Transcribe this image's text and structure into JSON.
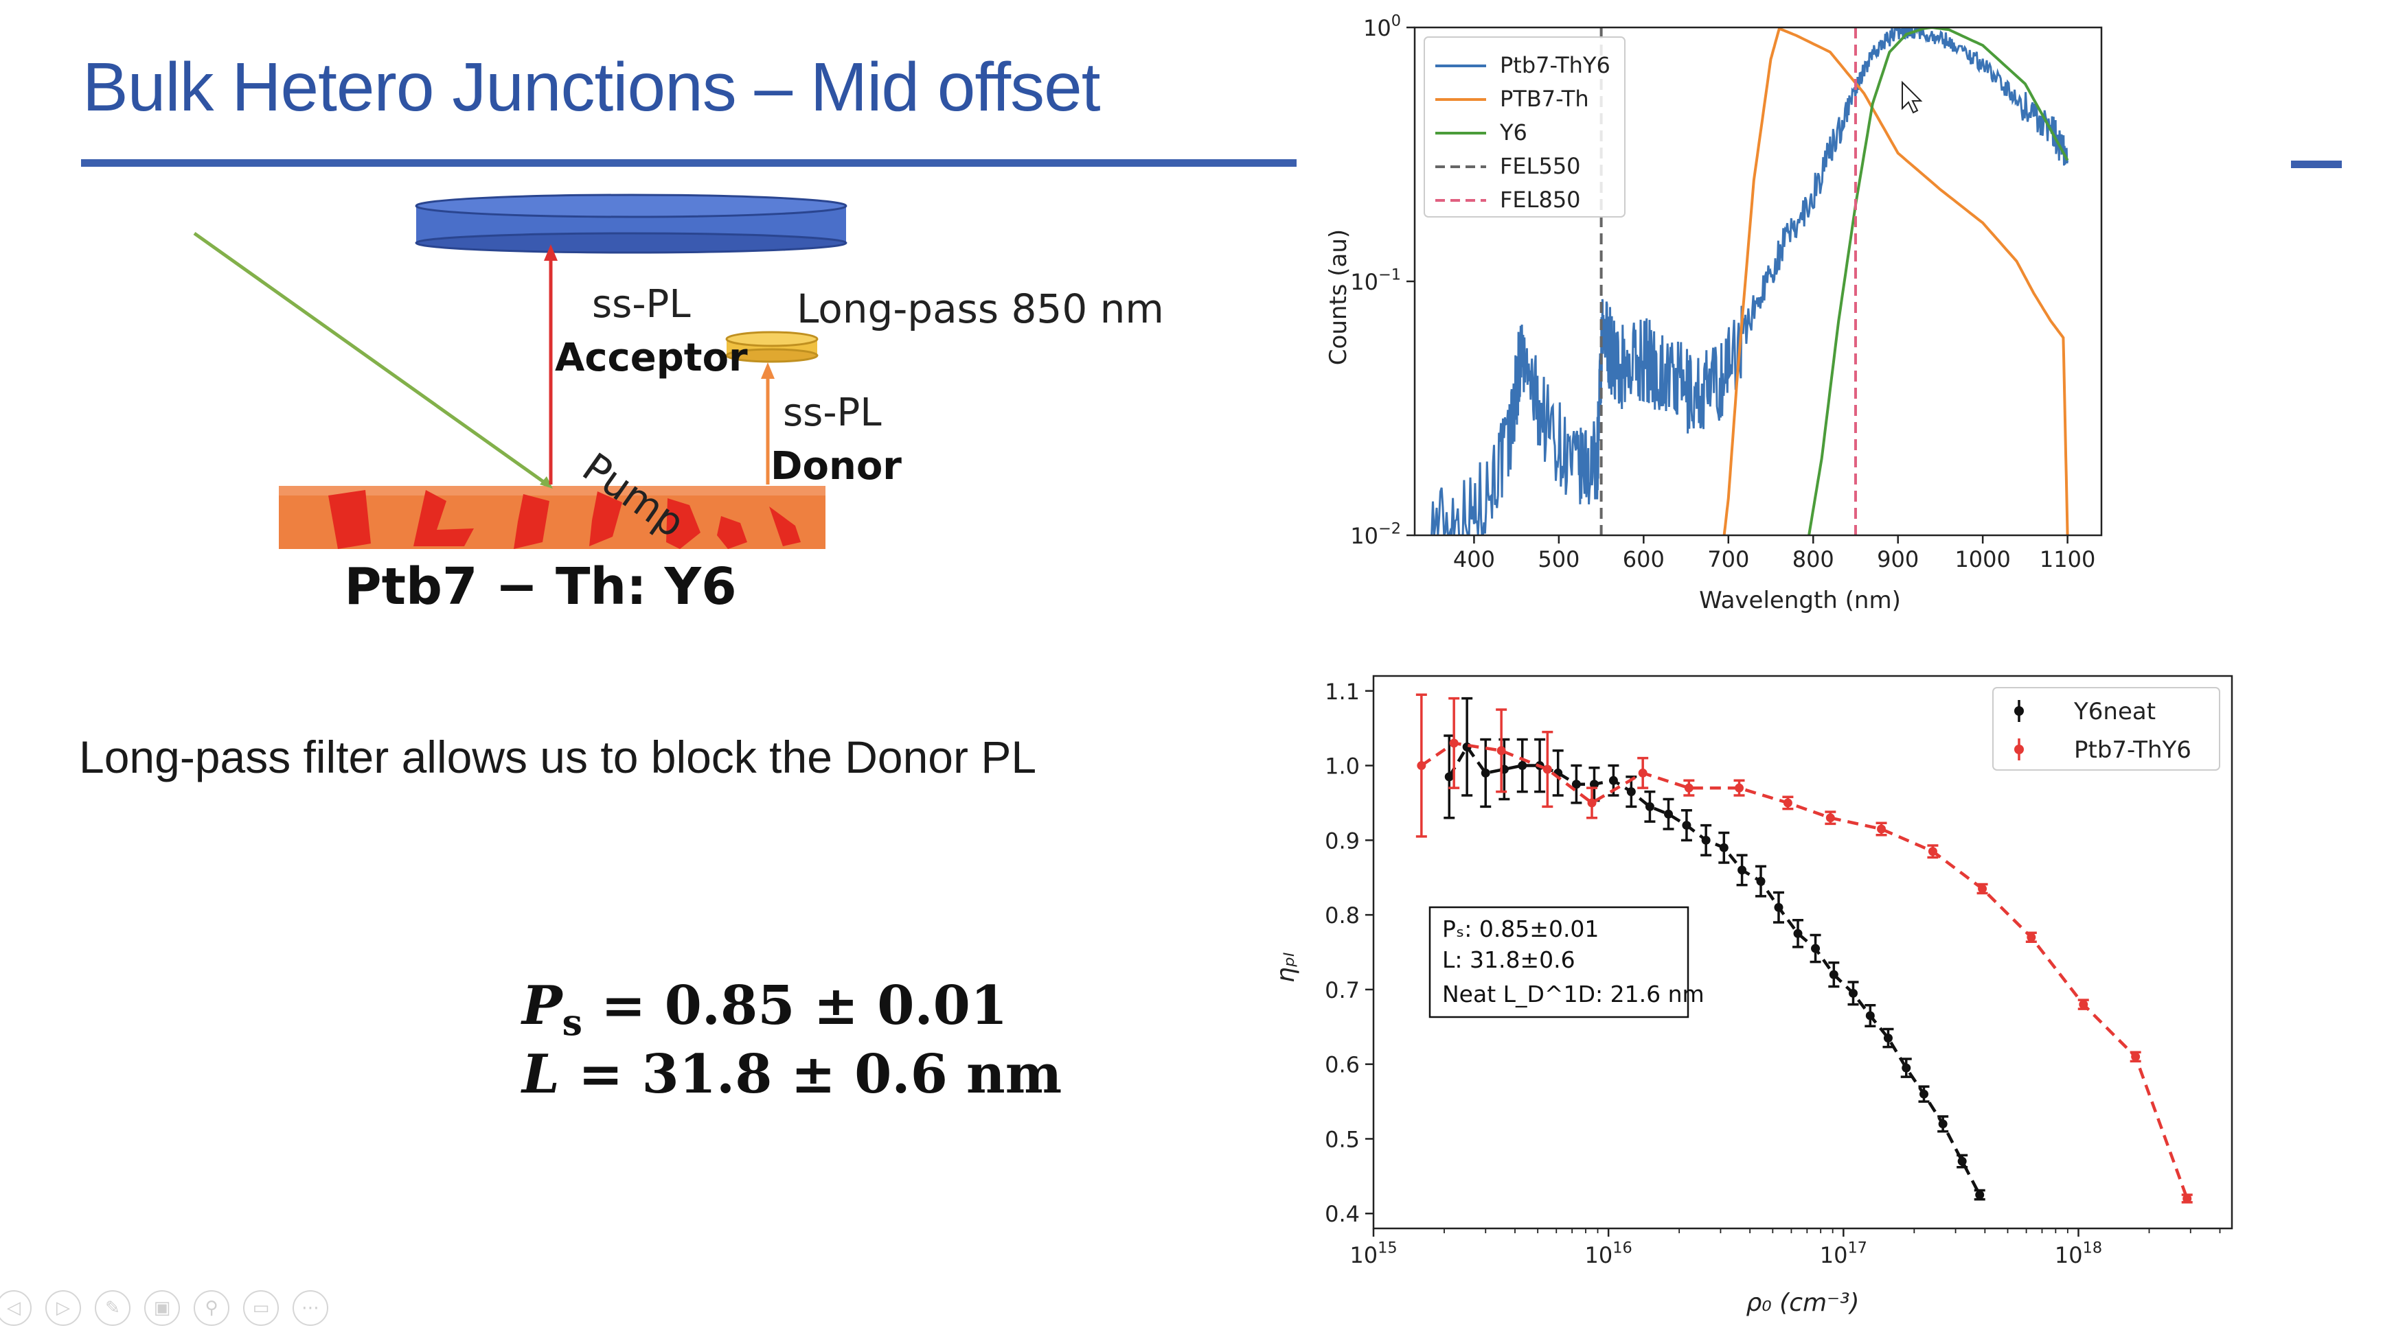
{
  "slide": {
    "title": "Bulk Hetero Junctions – Mid offset",
    "accent_color": "#3b5fae",
    "caption": "Long-pass filter allows us to block the Donor PL",
    "equation_1": {
      "lhs": "P",
      "sub": "s",
      "rest": " = 0.85 ± 0.01"
    },
    "equation_2": {
      "lhs": "L",
      "rest": " = 31.8 ± 0.6 nm"
    }
  },
  "diagram": {
    "pump_label": "Pump",
    "sspl_left": "ss-PL",
    "acceptor_label": "Acceptor",
    "filter_label": "Long-pass 850 nm",
    "sspl_right": "ss-PL",
    "donor_label": "Donor",
    "sample_label": "Ptb7 − Th: Y6",
    "colors": {
      "detector": "#4a6fc9",
      "filter": "#f0c040",
      "sample": "#ee8040",
      "domains": "#e52a20",
      "pump": "#82b04a",
      "acceptor_arrow": "#dd3030",
      "donor_arrow": "#f08a40"
    }
  },
  "charts": [
    {
      "id": "spectrum",
      "chart_data": {
        "type": "line",
        "xlabel": "Wavelength (nm)",
        "ylabel": "Counts (au)",
        "y_scale": "log",
        "xlim": [
          330,
          1140
        ],
        "ylim": [
          0.01,
          1.0
        ],
        "xticks": [
          400,
          500,
          600,
          700,
          800,
          900,
          1000,
          1100
        ],
        "yticks": [
          0.01,
          0.1,
          1.0
        ],
        "ytick_labels": [
          {
            "base": "10",
            "exp": "−2"
          },
          {
            "base": "10",
            "exp": "−1"
          },
          {
            "base": "10",
            "exp": "0"
          }
        ],
        "legend_position": "top-left",
        "series": [
          {
            "name": "Ptb7-ThY6",
            "color": "#3a73b5",
            "noisy": true,
            "x": [
              350,
              400,
              440,
              455,
              480,
              520,
              545,
              552,
              570,
              600,
              630,
              660,
              690,
              720,
              760,
              800,
              840,
              870,
              900,
              920,
              960,
              1000,
              1040,
              1080,
              1100
            ],
            "y": [
              0.011,
              0.012,
              0.022,
              0.05,
              0.03,
              0.018,
              0.019,
              0.065,
              0.045,
              0.05,
              0.042,
              0.035,
              0.04,
              0.065,
              0.13,
              0.22,
              0.48,
              0.8,
              0.97,
              0.98,
              0.88,
              0.72,
              0.52,
              0.4,
              0.3
            ]
          },
          {
            "name": "PTB7-Th",
            "color": "#ef8a30",
            "noisy": false,
            "x": [
              695,
              700,
              710,
              730,
              750,
              760,
              780,
              820,
              860,
              900,
              950,
              1000,
              1040,
              1060,
              1080,
              1095,
              1100
            ],
            "y": [
              0.01,
              0.014,
              0.04,
              0.25,
              0.75,
              0.99,
              0.93,
              0.8,
              0.55,
              0.32,
              0.23,
              0.17,
              0.12,
              0.09,
              0.07,
              0.06,
              0.01
            ]
          },
          {
            "name": "Y6",
            "color": "#4b9c3a",
            "noisy": false,
            "x": [
              795,
              810,
              830,
              850,
              870,
              890,
              910,
              930,
              940,
              960,
              1000,
              1050,
              1100
            ],
            "y": [
              0.01,
              0.02,
              0.07,
              0.2,
              0.5,
              0.8,
              0.94,
              0.99,
              1.0,
              0.98,
              0.85,
              0.6,
              0.3
            ]
          },
          {
            "name": "FEL550",
            "color": "#666666",
            "dashed": true,
            "vline": 550
          },
          {
            "name": "FEL850",
            "color": "#e06080",
            "dashed": true,
            "vline": 850
          }
        ]
      }
    },
    {
      "id": "decay",
      "chart_data": {
        "type": "scatter",
        "xlabel": "ρ₀ (cm⁻³)",
        "ylabel": "ηₚₗ",
        "x_scale": "log",
        "xlim": [
          1000000000000000.0,
          4.5e+18
        ],
        "ylim": [
          0.38,
          1.12
        ],
        "xticks": [
          1000000000000000.0,
          1e+16,
          1e+17,
          1e+18
        ],
        "xtick_labels": [
          {
            "base": "10",
            "exp": "15"
          },
          {
            "base": "10",
            "exp": "16"
          },
          {
            "base": "10",
            "exp": "17"
          },
          {
            "base": "10",
            "exp": "18"
          }
        ],
        "yticks": [
          0.4,
          0.5,
          0.6,
          0.7,
          0.8,
          0.9,
          1.0,
          1.1
        ],
        "legend_position": "top-right",
        "annotation": [
          "Pₛ: 0.85±0.01",
          "L: 31.8±0.6",
          "Neat L_D^1D: 21.6 nm"
        ],
        "series": [
          {
            "name": "Y6neat",
            "color": "#111111",
            "x": [
              2100000000000000.0,
              2500000000000000.0,
              3000000000000000.0,
              3600000000000000.0,
              4300000000000000.0,
              5100000000000000.0,
              6100000000000000.0,
              7300000000000000.0,
              8700000000000000.0,
              1.05e+16,
              1.25e+16,
              1.5e+16,
              1.8e+16,
              2.15e+16,
              2.6e+16,
              3.1e+16,
              3.7e+16,
              4.45e+16,
              5.3e+16,
              6.4e+16,
              7.6e+16,
              9.1e+16,
              1.1e+17,
              1.3e+17,
              1.55e+17,
              1.85e+17,
              2.2e+17,
              2.65e+17,
              3.2e+17,
              3.8e+17
            ],
            "y": [
              0.985,
              1.025,
              0.99,
              0.995,
              1.0,
              1.0,
              0.99,
              0.975,
              0.975,
              0.98,
              0.965,
              0.945,
              0.935,
              0.92,
              0.9,
              0.89,
              0.86,
              0.845,
              0.81,
              0.775,
              0.755,
              0.72,
              0.695,
              0.665,
              0.635,
              0.595,
              0.56,
              0.52,
              0.47,
              0.425
            ],
            "err": [
              0.055,
              0.065,
              0.045,
              0.04,
              0.035,
              0.035,
              0.03,
              0.025,
              0.022,
              0.02,
              0.02,
              0.02,
              0.02,
              0.02,
              0.02,
              0.02,
              0.02,
              0.02,
              0.02,
              0.018,
              0.018,
              0.016,
              0.015,
              0.014,
              0.012,
              0.012,
              0.01,
              0.01,
              0.008,
              0.006
            ]
          },
          {
            "name": "Ptb7-ThY6",
            "color": "#e53935",
            "x": [
              1600000000000000.0,
              2200000000000000.0,
              3500000000000000.0,
              5500000000000000.0,
              8500000000000000.0,
              1.4e+16,
              2.2e+16,
              3.6e+16,
              5.8e+16,
              8.8e+16,
              1.45e+17,
              2.4e+17,
              3.9e+17,
              6.3e+17,
              1.05e+18,
              1.75e+18,
              2.9e+18
            ],
            "y": [
              1.0,
              1.03,
              1.02,
              0.995,
              0.95,
              0.99,
              0.97,
              0.97,
              0.95,
              0.93,
              0.915,
              0.885,
              0.835,
              0.77,
              0.68,
              0.61,
              0.42
            ],
            "err": [
              0.095,
              0.06,
              0.055,
              0.05,
              0.02,
              0.02,
              0.01,
              0.01,
              0.008,
              0.008,
              0.008,
              0.008,
              0.006,
              0.006,
              0.006,
              0.006,
              0.005
            ]
          }
        ]
      }
    }
  ],
  "player_controls": [
    {
      "icon": "previous-icon"
    },
    {
      "icon": "play-icon"
    },
    {
      "icon": "pen-icon"
    },
    {
      "icon": "slides-icon"
    },
    {
      "icon": "zoom-icon"
    },
    {
      "icon": "subtitles-icon"
    },
    {
      "icon": "more-icon"
    }
  ]
}
